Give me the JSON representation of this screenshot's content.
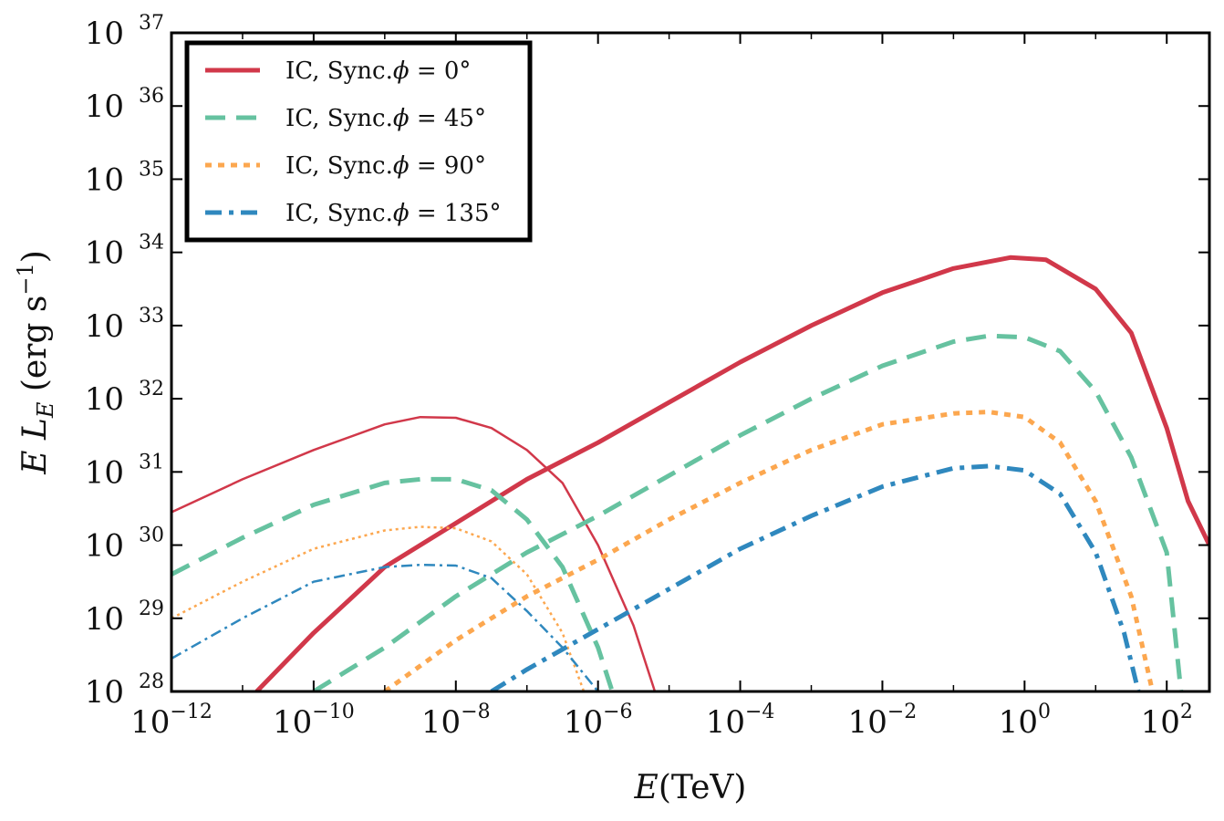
{
  "chart_data": {
    "type": "line",
    "xscale": "log",
    "yscale": "log",
    "xlabel": "E(TeV)",
    "ylabel": "E L_E (erg s^-1)",
    "xlim_log10": [
      -12,
      2.6
    ],
    "ylim_log10": [
      28,
      37
    ],
    "x_ticks": [
      {
        "base": "10",
        "exp": "−12",
        "log": -12
      },
      {
        "base": "10",
        "exp": "−10",
        "log": -10
      },
      {
        "base": "10",
        "exp": "−8",
        "log": -8
      },
      {
        "base": "10",
        "exp": "−6",
        "log": -6
      },
      {
        "base": "10",
        "exp": "−4",
        "log": -4
      },
      {
        "base": "10",
        "exp": "−2",
        "log": -2
      },
      {
        "base": "10",
        "exp": "0",
        "log": 0
      },
      {
        "base": "10",
        "exp": "2",
        "log": 2
      }
    ],
    "y_ticks": [
      {
        "base": "10",
        "exp": "28",
        "log": 28
      },
      {
        "base": "10",
        "exp": "29",
        "log": 29
      },
      {
        "base": "10",
        "exp": "30",
        "log": 30
      },
      {
        "base": "10",
        "exp": "31",
        "log": 31
      },
      {
        "base": "10",
        "exp": "32",
        "log": 32
      },
      {
        "base": "10",
        "exp": "33",
        "log": 33
      },
      {
        "base": "10",
        "exp": "34",
        "log": 34
      },
      {
        "base": "10",
        "exp": "35",
        "log": 35
      },
      {
        "base": "10",
        "exp": "36",
        "log": 36
      },
      {
        "base": "10",
        "exp": "37",
        "log": 37
      }
    ],
    "legend": [
      {
        "label_prefix": "IC, Sync.",
        "phi_symbol": "ϕ",
        "label_suffix": " = 0°",
        "color": "#d1384a",
        "style": "solid"
      },
      {
        "label_prefix": "IC, Sync.",
        "phi_symbol": "ϕ",
        "label_suffix": " = 45°",
        "color": "#66c2a0",
        "style": "dashed"
      },
      {
        "label_prefix": "IC, Sync.",
        "phi_symbol": "ϕ",
        "label_suffix": " = 90°",
        "color": "#fca74f",
        "style": "dotted"
      },
      {
        "label_prefix": "IC, Sync.",
        "phi_symbol": "ϕ",
        "label_suffix": " = 135°",
        "color": "#2f88be",
        "style": "dashdot"
      }
    ],
    "legend_position": "top-left",
    "series": [
      {
        "name": "IC phi=0",
        "component": "IC",
        "color": "#d1384a",
        "style": "solid",
        "weight": "thick",
        "log_x": [
          -10.8,
          -10,
          -9,
          -8,
          -7,
          -6,
          -5,
          -4,
          -3,
          -2,
          -1,
          -0.2,
          0.3,
          1,
          1.5,
          2,
          2.3,
          2.6
        ],
        "log_y": [
          28,
          28.8,
          29.7,
          30.3,
          30.9,
          31.4,
          31.95,
          32.5,
          33.0,
          33.45,
          33.78,
          33.93,
          33.9,
          33.5,
          32.9,
          31.6,
          30.6,
          30.0
        ]
      },
      {
        "name": "Sync phi=0",
        "component": "Sync",
        "color": "#d1384a",
        "style": "solid",
        "weight": "thin",
        "log_x": [
          -12,
          -11,
          -10,
          -9,
          -8.5,
          -8,
          -7.5,
          -7,
          -6.5,
          -6,
          -5.5,
          -5.2
        ],
        "log_y": [
          30.45,
          30.9,
          31.3,
          31.65,
          31.75,
          31.74,
          31.6,
          31.3,
          30.85,
          30.0,
          28.9,
          28.0
        ]
      },
      {
        "name": "IC phi=45",
        "component": "IC",
        "color": "#66c2a0",
        "style": "dashed",
        "weight": "thick",
        "log_x": [
          -10,
          -9,
          -8,
          -7,
          -6,
          -5,
          -4,
          -3,
          -2,
          -1,
          -0.5,
          0,
          0.5,
          1,
          1.5,
          2,
          2.2
        ],
        "log_y": [
          28,
          28.6,
          29.3,
          29.9,
          30.4,
          30.95,
          31.5,
          32.0,
          32.45,
          32.78,
          32.86,
          32.84,
          32.65,
          32.1,
          31.2,
          29.9,
          28.0
        ]
      },
      {
        "name": "Sync phi=45",
        "component": "Sync",
        "color": "#66c2a0",
        "style": "dashed",
        "weight": "thick",
        "log_x": [
          -12,
          -11,
          -10,
          -9,
          -8.5,
          -8,
          -7.5,
          -7,
          -6.5,
          -6,
          -5.8
        ],
        "log_y": [
          29.6,
          30.1,
          30.55,
          30.85,
          30.9,
          30.9,
          30.75,
          30.35,
          29.7,
          28.6,
          28.0
        ]
      },
      {
        "name": "IC phi=90",
        "component": "IC",
        "color": "#fca74f",
        "style": "dotted",
        "weight": "thick",
        "log_x": [
          -9,
          -8,
          -7,
          -6,
          -5,
          -4,
          -3,
          -2,
          -1,
          -0.5,
          0,
          0.5,
          1,
          1.5,
          1.8
        ],
        "log_y": [
          28,
          28.7,
          29.3,
          29.8,
          30.35,
          30.85,
          31.3,
          31.65,
          31.8,
          31.82,
          31.75,
          31.4,
          30.6,
          29.3,
          28.0
        ]
      },
      {
        "name": "Sync phi=90",
        "component": "Sync",
        "color": "#fca74f",
        "style": "dotted",
        "weight": "thin",
        "log_x": [
          -12,
          -11,
          -10,
          -9,
          -8.5,
          -8,
          -7.5,
          -7,
          -6.5,
          -6.2
        ],
        "log_y": [
          29.0,
          29.5,
          29.95,
          30.2,
          30.25,
          30.23,
          30.05,
          29.6,
          28.8,
          28.0
        ]
      },
      {
        "name": "IC phi=135",
        "component": "IC",
        "color": "#2f88be",
        "style": "dashdot",
        "weight": "thick",
        "log_x": [
          -7.5,
          -7,
          -6,
          -5,
          -4,
          -3,
          -2,
          -1,
          -0.5,
          0,
          0.5,
          1,
          1.4,
          1.6
        ],
        "log_y": [
          28,
          28.3,
          28.85,
          29.4,
          29.95,
          30.4,
          30.8,
          31.05,
          31.08,
          31.02,
          30.7,
          29.9,
          28.8,
          28.0
        ]
      },
      {
        "name": "Sync phi=135",
        "component": "Sync",
        "color": "#2f88be",
        "style": "dashdot",
        "weight": "thin",
        "log_x": [
          -12,
          -11,
          -10,
          -9,
          -8.5,
          -8,
          -7.5,
          -7,
          -6.5,
          -6
        ],
        "log_y": [
          28.45,
          29.0,
          29.5,
          29.7,
          29.73,
          29.72,
          29.55,
          29.1,
          28.6,
          28.0
        ]
      }
    ]
  }
}
